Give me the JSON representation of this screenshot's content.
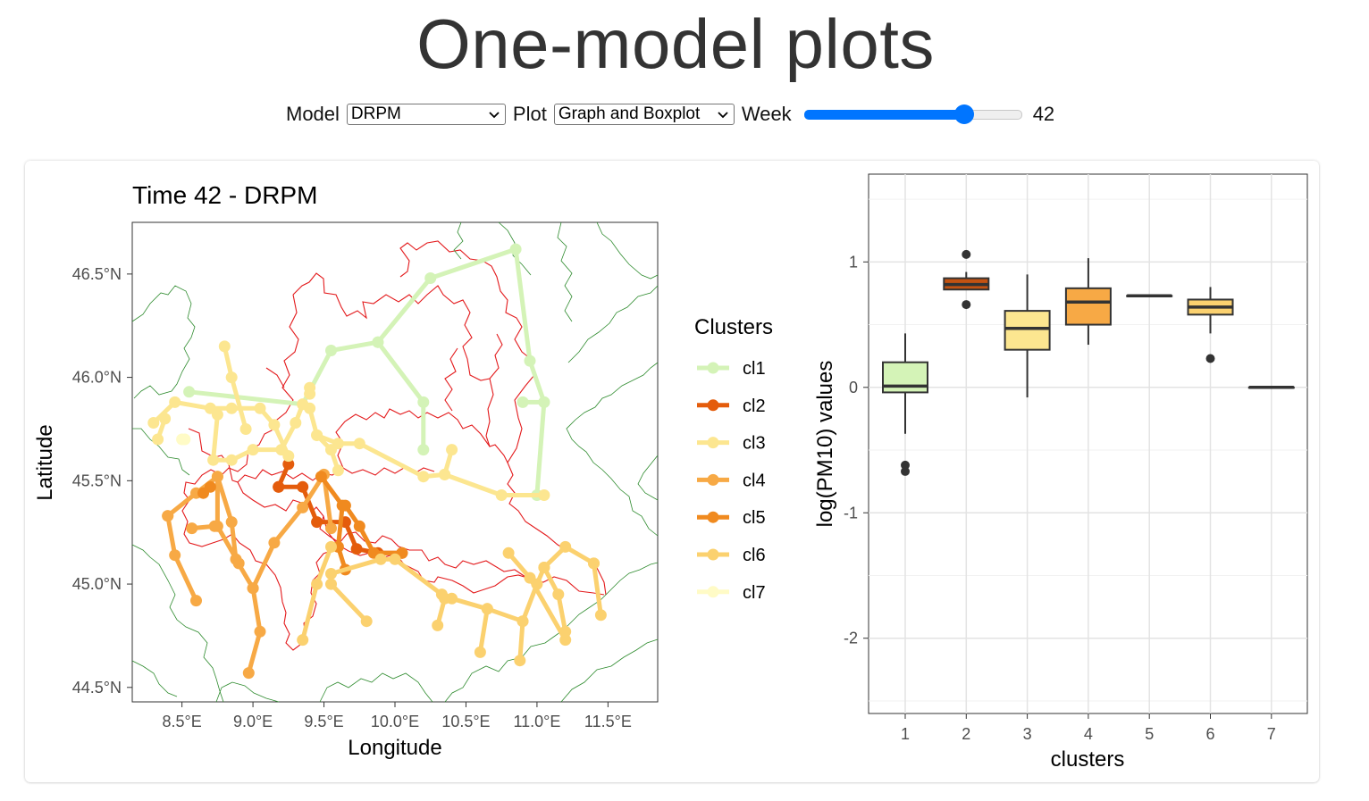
{
  "page": {
    "title": "One-model plots"
  },
  "controls": {
    "model_label": "Model",
    "model_value": "DRPM",
    "plot_label": "Plot",
    "plot_value": "Graph and Boxplot",
    "week_label": "Week",
    "week_value": "42",
    "week_fraction": 0.76
  },
  "chart_data": [
    {
      "type": "line",
      "title": "Time 42 - DRPM",
      "xlabel": "Longitude",
      "ylabel": "Latitude",
      "xlim": [
        8.15,
        11.85
      ],
      "ylim": [
        44.43,
        46.75
      ],
      "x_ticks": [
        8.5,
        9.0,
        9.5,
        10.0,
        10.5,
        11.0,
        11.5
      ],
      "x_tick_labels": [
        "8.5°E",
        "9.0°E",
        "9.5°E",
        "10.0°E",
        "10.5°E",
        "11.0°E",
        "11.5°E"
      ],
      "y_ticks": [
        44.5,
        45.0,
        45.5,
        46.0,
        46.5
      ],
      "y_tick_labels": [
        "44.5°N",
        "45.0°N",
        "45.5°N",
        "46.0°N",
        "46.5°N"
      ],
      "grid": false,
      "legend_title": "Clusters",
      "legend_position": "right",
      "series": [
        {
          "name": "cl1",
          "color": "#d4f3b7",
          "edges": [
            [
              [
                8.55,
                45.93
              ],
              [
                9.35,
                45.87
              ],
              [
                9.55,
                46.13
              ],
              [
                9.88,
                46.17
              ],
              [
                10.25,
                46.48
              ],
              [
                10.85,
                46.62
              ],
              [
                10.95,
                46.08
              ],
              [
                11.05,
                45.88
              ],
              [
                10.9,
                45.88
              ]
            ],
            [
              [
                9.88,
                46.17
              ],
              [
                10.2,
                45.88
              ],
              [
                10.2,
                45.65
              ]
            ],
            [
              [
                11.05,
                45.88
              ],
              [
                11.0,
                45.43
              ]
            ]
          ]
        },
        {
          "name": "cl2",
          "color": "#e45c0c",
          "edges": [
            [
              [
                9.18,
                45.47
              ],
              [
                9.25,
                45.58
              ]
            ],
            [
              [
                9.18,
                45.47
              ],
              [
                9.35,
                45.47
              ],
              [
                9.45,
                45.3
              ],
              [
                9.65,
                45.3
              ],
              [
                9.73,
                45.17
              ],
              [
                9.88,
                45.15
              ],
              [
                10.05,
                45.15
              ]
            ]
          ]
        },
        {
          "name": "cl3",
          "color": "#fce690",
          "edges": [
            [
              [
                8.3,
                45.78
              ],
              [
                8.45,
                45.88
              ],
              [
                8.7,
                45.85
              ],
              [
                8.85,
                45.85
              ],
              [
                9.05,
                45.85
              ],
              [
                9.15,
                45.77
              ],
              [
                9.25,
                45.62
              ]
            ],
            [
              [
                8.75,
                45.82
              ],
              [
                8.72,
                45.6
              ],
              [
                8.85,
                45.6
              ],
              [
                9.0,
                45.65
              ],
              [
                9.2,
                45.65
              ],
              [
                9.3,
                45.78
              ],
              [
                9.35,
                45.87
              ]
            ],
            [
              [
                8.8,
                46.15
              ],
              [
                8.85,
                46.0
              ],
              [
                8.95,
                45.75
              ]
            ],
            [
              [
                9.4,
                45.85
              ],
              [
                9.45,
                45.72
              ],
              [
                9.6,
                45.68
              ],
              [
                9.75,
                45.68
              ],
              [
                10.2,
                45.52
              ],
              [
                10.35,
                45.53
              ],
              [
                10.75,
                45.43
              ],
              [
                11.05,
                45.43
              ]
            ],
            [
              [
                9.45,
                45.72
              ],
              [
                9.55,
                45.65
              ],
              [
                9.6,
                45.55
              ]
            ],
            [
              [
                10.35,
                45.53
              ],
              [
                10.4,
                45.65
              ]
            ],
            [
              [
                8.33,
                45.7
              ],
              [
                8.38,
                45.8
              ]
            ],
            [
              [
                9.4,
                45.92
              ],
              [
                9.4,
                45.95
              ]
            ]
          ]
        },
        {
          "name": "cl4",
          "color": "#f7a945",
          "edges": [
            [
              [
                8.4,
                45.33
              ],
              [
                8.6,
                45.44
              ],
              [
                8.75,
                45.52
              ],
              [
                8.85,
                45.3
              ],
              [
                8.88,
                45.12
              ],
              [
                9.0,
                44.98
              ],
              [
                9.05,
                44.77
              ],
              [
                8.97,
                44.57
              ]
            ],
            [
              [
                8.4,
                45.33
              ],
              [
                8.45,
                45.14
              ],
              [
                8.6,
                44.92
              ]
            ],
            [
              [
                8.75,
                45.52
              ],
              [
                8.75,
                45.28
              ],
              [
                8.9,
                45.1
              ]
            ],
            [
              [
                9.0,
                44.98
              ],
              [
                9.15,
                45.2
              ],
              [
                9.35,
                45.37
              ],
              [
                9.5,
                45.53
              ],
              [
                9.55,
                45.27
              ]
            ],
            [
              [
                8.57,
                45.27
              ],
              [
                8.73,
                45.28
              ]
            ]
          ]
        },
        {
          "name": "cl5",
          "color": "#f08a1f",
          "edges": [
            [
              [
                8.7,
                45.47
              ],
              [
                8.65,
                45.44
              ]
            ],
            [
              [
                9.48,
                45.52
              ],
              [
                9.63,
                45.38
              ],
              [
                9.6,
                45.18
              ],
              [
                9.65,
                45.07
              ]
            ],
            [
              [
                9.65,
                45.38
              ],
              [
                9.75,
                45.28
              ],
              [
                9.85,
                45.15
              ],
              [
                10.05,
                45.15
              ]
            ]
          ]
        },
        {
          "name": "cl6",
          "color": "#fbd16f",
          "edges": [
            [
              [
                9.55,
                45.18
              ],
              [
                9.45,
                45.0
              ],
              [
                9.35,
                44.73
              ]
            ],
            [
              [
                9.55,
                45.0
              ],
              [
                9.8,
                44.82
              ]
            ],
            [
              [
                9.55,
                45.05
              ],
              [
                9.9,
                45.12
              ],
              [
                10.0,
                45.12
              ],
              [
                10.33,
                44.95
              ],
              [
                10.4,
                44.93
              ],
              [
                10.65,
                44.88
              ],
              [
                10.9,
                44.82
              ],
              [
                11.0,
                45.0
              ],
              [
                11.05,
                45.08
              ],
              [
                11.2,
                45.18
              ],
              [
                11.4,
                45.1
              ]
            ],
            [
              [
                10.35,
                44.93
              ],
              [
                10.3,
                44.8
              ]
            ],
            [
              [
                10.65,
                44.88
              ],
              [
                10.6,
                44.67
              ]
            ],
            [
              [
                10.9,
                44.82
              ],
              [
                10.88,
                44.63
              ]
            ],
            [
              [
                10.8,
                45.15
              ],
              [
                10.95,
                45.03
              ],
              [
                11.2,
                44.73
              ]
            ],
            [
              [
                11.4,
                45.1
              ],
              [
                11.45,
                44.85
              ]
            ],
            [
              [
                11.05,
                45.08
              ],
              [
                11.15,
                44.95
              ],
              [
                11.2,
                44.77
              ]
            ]
          ]
        },
        {
          "name": "cl7",
          "color": "#fffbc6",
          "edges": [
            [
              [
                8.5,
                45.7
              ],
              [
                8.52,
                45.7
              ]
            ]
          ]
        }
      ],
      "points_note": "nodes drawn at every edge vertex"
    },
    {
      "type": "box",
      "title": "",
      "xlabel": "clusters",
      "ylabel": "log(PM10) values",
      "categories": [
        "1",
        "2",
        "3",
        "4",
        "5",
        "6",
        "7"
      ],
      "ylim": [
        -2.6,
        1.7
      ],
      "y_ticks": [
        -2,
        -1,
        0,
        1
      ],
      "y_tick_labels": [
        "-2",
        "-1",
        "0",
        "1"
      ],
      "grid": true,
      "boxes": [
        {
          "cat": "1",
          "q1": -0.04,
          "median": 0.01,
          "q3": 0.2,
          "whisker_low": -0.37,
          "whisker_high": 0.43,
          "outliers": [
            -0.62,
            -0.67
          ],
          "color": "#d4f3b7"
        },
        {
          "cat": "2",
          "q1": 0.78,
          "median": 0.82,
          "q3": 0.87,
          "whisker_low": 0.78,
          "whisker_high": 0.92,
          "outliers": [
            1.06,
            0.66
          ],
          "color": "#c45211"
        },
        {
          "cat": "3",
          "q1": 0.3,
          "median": 0.47,
          "q3": 0.61,
          "whisker_low": -0.08,
          "whisker_high": 0.9,
          "outliers": [],
          "color": "#fce690"
        },
        {
          "cat": "4",
          "q1": 0.5,
          "median": 0.68,
          "q3": 0.79,
          "whisker_low": 0.34,
          "whisker_high": 1.03,
          "outliers": [],
          "color": "#f7a945"
        },
        {
          "cat": "5",
          "q1": 0.73,
          "median": 0.73,
          "q3": 0.73,
          "whisker_low": 0.73,
          "whisker_high": 0.73,
          "outliers": [],
          "color": "#f08a1f"
        },
        {
          "cat": "6",
          "q1": 0.58,
          "median": 0.64,
          "q3": 0.7,
          "whisker_low": 0.43,
          "whisker_high": 0.8,
          "outliers": [
            0.23
          ],
          "color": "#fbd16f"
        },
        {
          "cat": "7",
          "q1": 0.0,
          "median": 0.0,
          "q3": 0.0,
          "whisker_low": 0.0,
          "whisker_high": 0.0,
          "outliers": [],
          "color": "#fffbc6"
        }
      ]
    }
  ]
}
